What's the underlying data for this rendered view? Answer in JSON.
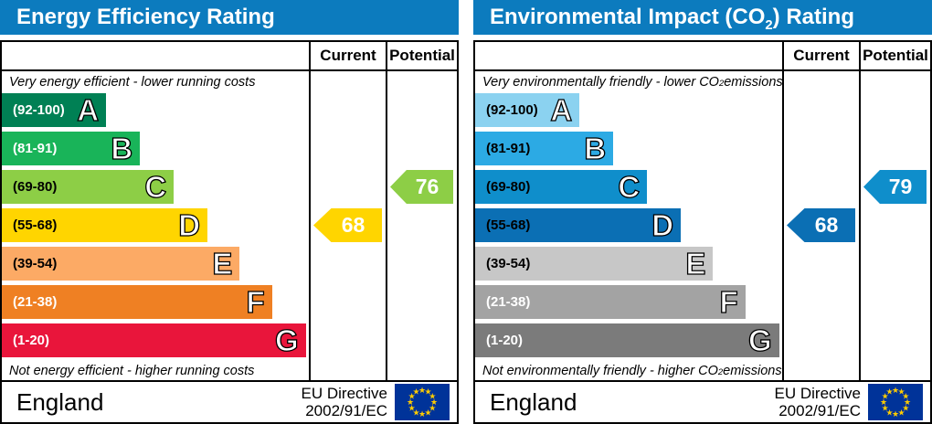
{
  "colors": {
    "header_blue": "#0c7bbe",
    "eu_flag_blue": "#003399",
    "eu_star_yellow": "#ffcc00"
  },
  "chart_data": [
    {
      "type": "bar",
      "title": "Energy Efficiency Rating",
      "caption_top": "Very energy efficient - lower running costs",
      "caption_bottom": "Not energy efficient - higher running costs",
      "columns": [
        "Current",
        "Potential"
      ],
      "categories": [
        "A (92-100)",
        "B (81-91)",
        "C (69-80)",
        "D (55-68)",
        "E (39-54)",
        "F (21-38)",
        "G (1-20)"
      ],
      "band_colors": [
        "#008054",
        "#19b459",
        "#8dce46",
        "#ffd500",
        "#fcaa65",
        "#ef8023",
        "#e9153b"
      ],
      "current": 68,
      "current_band": "D",
      "potential": 76,
      "potential_band": "C",
      "region": "England",
      "directive": "EU Directive 2002/91/EC"
    },
    {
      "type": "bar",
      "title": "Environmental Impact (CO2) Rating",
      "caption_top": "Very environmentally friendly - lower CO2 emissions",
      "caption_bottom": "Not environmentally friendly - higher CO2 emissions",
      "columns": [
        "Current",
        "Potential"
      ],
      "categories": [
        "A (92-100)",
        "B (81-91)",
        "C (69-80)",
        "D (55-68)",
        "E (39-54)",
        "F (21-38)",
        "G (1-20)"
      ],
      "band_colors": [
        "#8bd2f0",
        "#2caae4",
        "#0f8ecb",
        "#0b6fb4",
        "#c7c7c7",
        "#a3a3a3",
        "#7b7b7b"
      ],
      "current": 68,
      "current_band": "D",
      "potential": 79,
      "potential_band": "C",
      "region": "England",
      "directive": "EU Directive 2002/91/EC"
    }
  ],
  "panels": [
    {
      "title_pre": "Energy Efficiency Rating",
      "title_sub": "",
      "title_post": "",
      "col_current": "Current",
      "col_potential": "Potential",
      "cap_top_pre": "Very energy efficient - lower running costs",
      "cap_top_sub": "",
      "cap_top_post": "",
      "cap_bot_pre": "Not energy efficient - higher running costs",
      "cap_bot_sub": "",
      "cap_bot_post": "",
      "bands": [
        {
          "label": "A",
          "range": "(92-100)",
          "color": "#008054",
          "range_color": "#ffffff",
          "width_pct": 34
        },
        {
          "label": "B",
          "range": "(81-91)",
          "color": "#19b459",
          "range_color": "#ffffff",
          "width_pct": 45
        },
        {
          "label": "C",
          "range": "(69-80)",
          "color": "#8dce46",
          "range_color": "#000000",
          "width_pct": 56
        },
        {
          "label": "D",
          "range": "(55-68)",
          "color": "#ffd500",
          "range_color": "#000000",
          "width_pct": 67
        },
        {
          "label": "E",
          "range": "(39-54)",
          "color": "#fcaa65",
          "range_color": "#000000",
          "width_pct": 77.5
        },
        {
          "label": "F",
          "range": "(21-38)",
          "color": "#ef8023",
          "range_color": "#ffffff",
          "width_pct": 88
        },
        {
          "label": "G",
          "range": "(1-20)",
          "color": "#e9153b",
          "range_color": "#ffffff",
          "width_pct": 99
        }
      ],
      "current": {
        "value": "68",
        "row": 3,
        "color": "#ffd500"
      },
      "potential": {
        "value": "76",
        "row": 2,
        "color": "#8dce46"
      },
      "footer": {
        "region": "England",
        "directive_line1": "EU Directive",
        "directive_line2": "2002/91/EC"
      }
    },
    {
      "title_pre": "Environmental Impact (CO",
      "title_sub": "2",
      "title_post": ") Rating",
      "col_current": "Current",
      "col_potential": "Potential",
      "cap_top_pre": "Very environmentally friendly - lower CO",
      "cap_top_sub": "2",
      "cap_top_post": " emissions",
      "cap_bot_pre": "Not environmentally friendly - higher CO",
      "cap_bot_sub": "2",
      "cap_bot_post": " emissions",
      "bands": [
        {
          "label": "A",
          "range": "(92-100)",
          "color": "#8bd2f0",
          "range_color": "#000000",
          "width_pct": 34
        },
        {
          "label": "B",
          "range": "(81-91)",
          "color": "#2caae4",
          "range_color": "#000000",
          "width_pct": 45
        },
        {
          "label": "C",
          "range": "(69-80)",
          "color": "#0f8ecb",
          "range_color": "#000000",
          "width_pct": 56
        },
        {
          "label": "D",
          "range": "(55-68)",
          "color": "#0b6fb4",
          "range_color": "#000000",
          "width_pct": 67
        },
        {
          "label": "E",
          "range": "(39-54)",
          "color": "#c7c7c7",
          "range_color": "#000000",
          "width_pct": 77.5
        },
        {
          "label": "F",
          "range": "(21-38)",
          "color": "#a3a3a3",
          "range_color": "#ffffff",
          "width_pct": 88
        },
        {
          "label": "G",
          "range": "(1-20)",
          "color": "#7b7b7b",
          "range_color": "#ffffff",
          "width_pct": 99
        }
      ],
      "current": {
        "value": "68",
        "row": 3,
        "color": "#0b6fb4"
      },
      "potential": {
        "value": "79",
        "row": 2,
        "color": "#0f8ecb"
      },
      "footer": {
        "region": "England",
        "directive_line1": "EU Directive",
        "directive_line2": "2002/91/EC"
      }
    }
  ]
}
